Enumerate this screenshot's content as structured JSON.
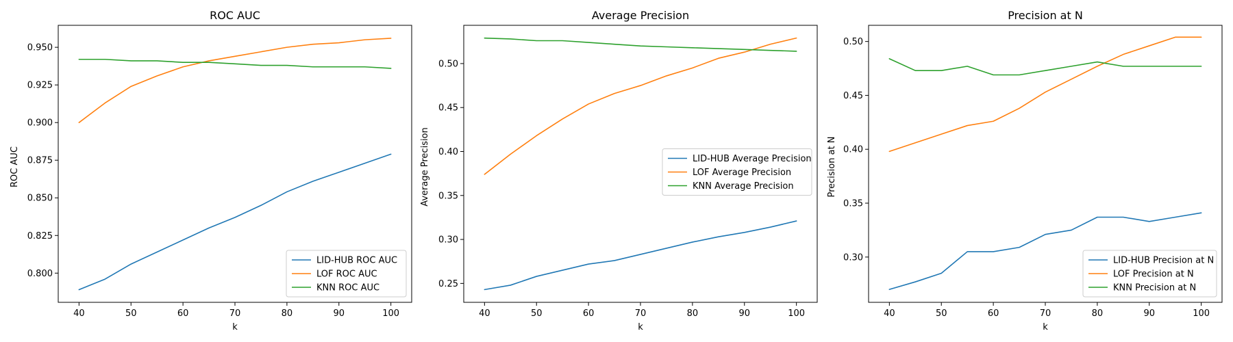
{
  "colors": {
    "LID-HUB": "#1f77b4",
    "LOF": "#ff7f0e",
    "KNN": "#2ca02c"
  },
  "chart_data": [
    {
      "type": "line",
      "title": "ROC AUC",
      "xlabel": "k",
      "ylabel": "ROC AUC",
      "x": [
        40,
        45,
        50,
        55,
        60,
        65,
        70,
        75,
        80,
        85,
        90,
        95,
        100
      ],
      "xlim": [
        36,
        104
      ],
      "ylim": [
        0.7806,
        0.9646
      ],
      "xticks": [
        "40",
        "50",
        "60",
        "70",
        "80",
        "90",
        "100"
      ],
      "yticks": [
        "0.800",
        "0.825",
        "0.850",
        "0.875",
        "0.900",
        "0.925",
        "0.950"
      ],
      "legend_position": "bottom-right",
      "series": [
        {
          "name": "LID-HUB ROC AUC",
          "color": "#1f77b4",
          "values": [
            0.789,
            0.796,
            0.806,
            0.814,
            0.822,
            0.83,
            0.837,
            0.845,
            0.854,
            0.861,
            0.867,
            0.873,
            0.879
          ]
        },
        {
          "name": "LOF ROC AUC",
          "color": "#ff7f0e",
          "values": [
            0.9,
            0.913,
            0.924,
            0.931,
            0.937,
            0.941,
            0.944,
            0.947,
            0.95,
            0.952,
            0.953,
            0.955,
            0.956
          ]
        },
        {
          "name": "KNN ROC AUC",
          "color": "#2ca02c",
          "values": [
            0.942,
            0.942,
            0.941,
            0.941,
            0.94,
            0.94,
            0.939,
            0.938,
            0.938,
            0.937,
            0.937,
            0.937,
            0.936
          ]
        }
      ]
    },
    {
      "type": "line",
      "title": "Average Precision",
      "xlabel": "k",
      "ylabel": "Average Precision",
      "x": [
        40,
        45,
        50,
        55,
        60,
        65,
        70,
        75,
        80,
        85,
        90,
        95,
        100
      ],
      "xlim": [
        36,
        104
      ],
      "ylim": [
        0.2285,
        0.5435
      ],
      "xticks": [
        "40",
        "50",
        "60",
        "70",
        "80",
        "90",
        "100"
      ],
      "yticks": [
        "0.25",
        "0.30",
        "0.35",
        "0.40",
        "0.45",
        "0.50"
      ],
      "legend_position": "center-right",
      "series": [
        {
          "name": "LID-HUB Average Precision",
          "color": "#1f77b4",
          "values": [
            0.243,
            0.248,
            0.258,
            0.265,
            0.272,
            0.276,
            0.283,
            0.29,
            0.297,
            0.303,
            0.308,
            0.314,
            0.321
          ]
        },
        {
          "name": "LOF Average Precision",
          "color": "#ff7f0e",
          "values": [
            0.374,
            0.397,
            0.418,
            0.437,
            0.454,
            0.466,
            0.475,
            0.486,
            0.495,
            0.506,
            0.513,
            0.522,
            0.529
          ]
        },
        {
          "name": "KNN Average Precision",
          "color": "#2ca02c",
          "values": [
            0.529,
            0.528,
            0.526,
            0.526,
            0.524,
            0.522,
            0.52,
            0.519,
            0.518,
            0.517,
            0.516,
            0.515,
            0.514
          ]
        }
      ]
    },
    {
      "type": "line",
      "title": "Precision at N",
      "xlabel": "k",
      "ylabel": "Precision at N",
      "x": [
        40,
        45,
        50,
        55,
        60,
        65,
        70,
        75,
        80,
        85,
        90,
        95,
        100
      ],
      "xlim": [
        36,
        104
      ],
      "ylim": [
        0.258,
        0.515
      ],
      "xticks": [
        "40",
        "50",
        "60",
        "70",
        "80",
        "90",
        "100"
      ],
      "yticks": [
        "0.30",
        "0.35",
        "0.40",
        "0.45",
        "0.50"
      ],
      "legend_position": "bottom-right",
      "series": [
        {
          "name": "LID-HUB Precision at N",
          "color": "#1f77b4",
          "values": [
            0.27,
            0.277,
            0.285,
            0.305,
            0.305,
            0.309,
            0.321,
            0.325,
            0.337,
            0.337,
            0.333,
            0.337,
            0.341
          ]
        },
        {
          "name": "LOF Precision at N",
          "color": "#ff7f0e",
          "values": [
            0.398,
            0.406,
            0.414,
            0.422,
            0.426,
            0.438,
            0.453,
            0.465,
            0.477,
            0.488,
            0.496,
            0.504,
            0.504
          ]
        },
        {
          "name": "KNN Precision at N",
          "color": "#2ca02c",
          "values": [
            0.484,
            0.473,
            0.473,
            0.477,
            0.469,
            0.469,
            0.473,
            0.477,
            0.481,
            0.477,
            0.477,
            0.477,
            0.477
          ]
        }
      ]
    }
  ]
}
